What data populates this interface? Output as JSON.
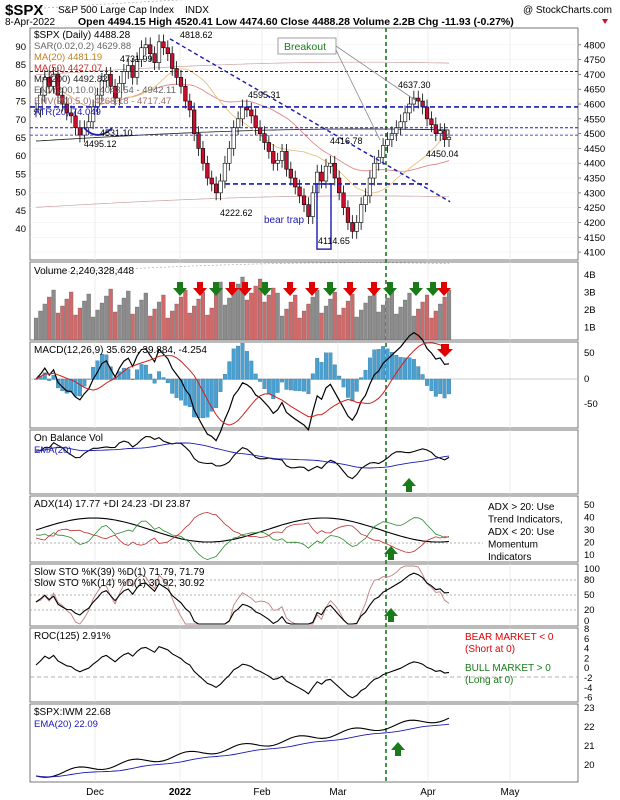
{
  "header": {
    "symbol": "$SPX",
    "description": "S&P 500 Large Cap Index",
    "exchange": "INDX",
    "watermark": "@ StockCharts.com",
    "date": "8-Apr-2022",
    "stats": "Open 4494.15  High 4520.41  Low 4474.60  Close 4488.28  Volume 2.2B  Chg -11.93 (-0.27%)"
  },
  "legend": {
    "main": "$SPX (Daily) 4488.28",
    "sar": "SAR(0.02,0.2) 4629.88",
    "ma20": "MA(20) 4481.19",
    "ma50": "MA(50) 4427.07",
    "ma200": "MA(200) 4492.82",
    "env10": "ENV(200,10.0) 4043.54 - 4942.11",
    "env5": "ENV(200,5.0) 4268.18 - 4717.47",
    "atr": "ATR(20) 74.049"
  },
  "annotations": {
    "breakout": "Breakout",
    "bear_trap": "bear trap",
    "p4818": "4818.62",
    "p4731": "4731.99",
    "p4595": "4595.31",
    "p4637": "4637.30",
    "p4531": "4531.10",
    "p4495": "4495.12",
    "p4416": "4416.78",
    "p4450": "4450.04",
    "p4222": "4222.62",
    "p4114": "4114.65"
  },
  "x_labels": [
    "Dec",
    "2022",
    "Feb",
    "Mar",
    "Apr",
    "May"
  ],
  "price_axis_right": [
    "4800",
    "4750",
    "4700",
    "4650",
    "4600",
    "4550",
    "4500",
    "4450",
    "4400",
    "4350",
    "4300",
    "4250",
    "4200",
    "4150",
    "4100"
  ],
  "price_axis_left": [
    "90",
    "85",
    "80",
    "75",
    "70",
    "65",
    "60",
    "55",
    "50",
    "45",
    "40"
  ],
  "panels": {
    "volume": {
      "label": "Volume 2,240,328,448",
      "ticks": [
        "4B",
        "3B",
        "2B",
        "1B"
      ]
    },
    "macd": {
      "label": "MACD(12,26,9) 35.629, 39.884, -4.254",
      "ticks": [
        "50",
        "0",
        "-50"
      ]
    },
    "obv": {
      "label": "On Balance Vol",
      "ema": "EMA(20)"
    },
    "adx": {
      "label": "ADX(14) 17.77 +DI 24.23 -DI 23.87",
      "ticks": [
        "50",
        "40",
        "30",
        "20",
        "10"
      ],
      "note": [
        "ADX > 20: Use",
        "Trend Indicators,",
        "ADX < 20: Use",
        "Momentum",
        "Indicators"
      ]
    },
    "sto": {
      "label1": "Slow STO %K(39) %D(1) 71.79, 71.79",
      "label2": "Slow STO %K(14) %D(1) 30.92, 30.92",
      "ticks": [
        "100",
        "80",
        "50",
        "20",
        "0"
      ]
    },
    "roc": {
      "label": "ROC(125) 2.91%",
      "ticks": [
        "8",
        "6",
        "4",
        "2",
        "0",
        "-2",
        "-4",
        "-6"
      ],
      "bear": [
        "BEAR MARKET < 0",
        "(Short at 0)"
      ],
      "bull": [
        "BULL MARKET > 0",
        "(Long at 0)"
      ]
    },
    "ratio": {
      "label": "$SPX:IWM 22.68",
      "ema": "EMA(20) 22.09",
      "ticks": [
        "23",
        "22",
        "21",
        "20"
      ]
    }
  },
  "colors": {
    "up": "#ffffff",
    "down": "#c8102e",
    "vol_up": "#8c8c8c",
    "vol_down": "#d06a6a",
    "blue": "#1a1ab0",
    "green": "#1a7a1a",
    "red": "#e00000",
    "orange": "#f08a1a"
  },
  "chart_data": {
    "type": "line",
    "title": "$SPX S&P 500 Large Cap Index",
    "x": [
      "Dec",
      "2022",
      "Feb",
      "Mar",
      "Apr",
      "May"
    ],
    "close_series": [
      4580,
      4630,
      4690,
      4660,
      4700,
      4630,
      4600,
      4570,
      4560,
      4520,
      4495,
      4520,
      4540,
      4590,
      4630,
      4680,
      4700,
      4660,
      4620,
      4670,
      4710,
      4730,
      4690,
      4750,
      4790,
      4800,
      4770,
      4740,
      4810,
      4790,
      4770,
      4720,
      4690,
      4660,
      4610,
      4580,
      4500,
      4450,
      4400,
      4350,
      4330,
      4300,
      4340,
      4400,
      4450,
      4520,
      4550,
      4590,
      4580,
      4560,
      4520,
      4500,
      4470,
      4440,
      4400,
      4410,
      4440,
      4380,
      4350,
      4320,
      4290,
      4260,
      4220,
      4300,
      4370,
      4340,
      4390,
      4400,
      4350,
      4300,
      4250,
      4200,
      4170,
      4200,
      4260,
      4290,
      4350,
      4400,
      4420,
      4460,
      4480,
      4500,
      4520,
      4540,
      4570,
      4600,
      4620,
      4610,
      4590,
      4550,
      4530,
      4500,
      4510,
      4480,
      4488
    ],
    "ylim": [
      4080,
      4850
    ]
  }
}
